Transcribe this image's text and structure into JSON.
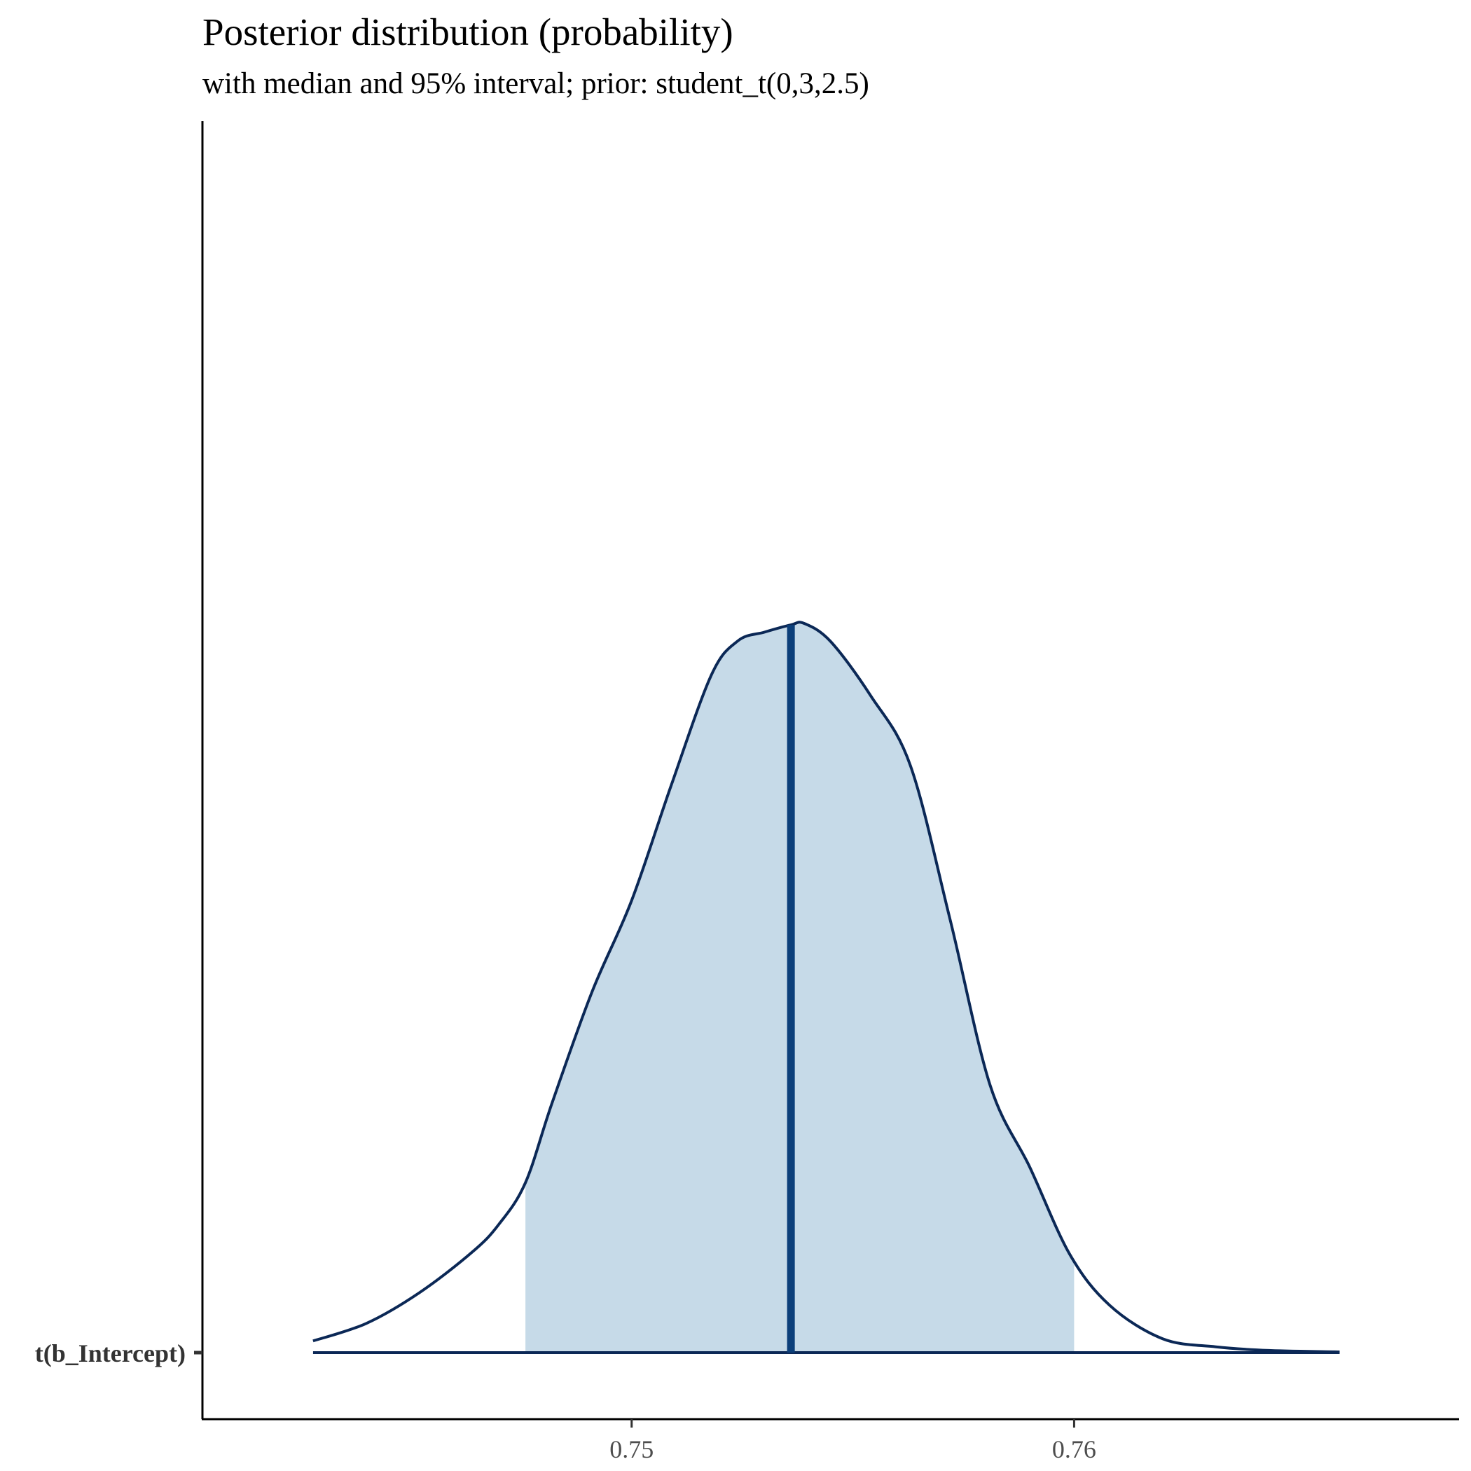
{
  "chart_data": {
    "type": "area",
    "title": "Posterior distribution (probability)",
    "subtitle": "with median and 95% interval; prior: student_t(0,3,2.5)",
    "parameter": "t(b_Intercept)",
    "xlim": [
      0.7403,
      0.7687
    ],
    "x_ticks": [
      0.75,
      0.76
    ],
    "x_tick_labels": [
      "0.75",
      "0.76"
    ],
    "median": 0.7536,
    "interval_95": [
      0.7476,
      0.76
    ],
    "density": {
      "x": [
        0.7428,
        0.744,
        0.7452,
        0.7464,
        0.747,
        0.7476,
        0.7482,
        0.7491,
        0.75,
        0.7509,
        0.7518,
        0.7524,
        0.753,
        0.7536,
        0.7539,
        0.7545,
        0.7554,
        0.7563,
        0.7572,
        0.7581,
        0.759,
        0.7599,
        0.7608,
        0.762,
        0.7632,
        0.7644,
        0.766
      ],
      "y": [
        0.016,
        0.04,
        0.082,
        0.138,
        0.176,
        0.233,
        0.342,
        0.494,
        0.62,
        0.779,
        0.929,
        0.976,
        0.988,
        0.998,
        1.0,
        0.975,
        0.901,
        0.805,
        0.593,
        0.367,
        0.254,
        0.135,
        0.065,
        0.019,
        0.008,
        0.003,
        0.001
      ]
    },
    "fill_color": "#c6dae8",
    "line_color": "#0b2856",
    "median_color": "#0c3f7a",
    "grid": false,
    "legend": "none"
  }
}
